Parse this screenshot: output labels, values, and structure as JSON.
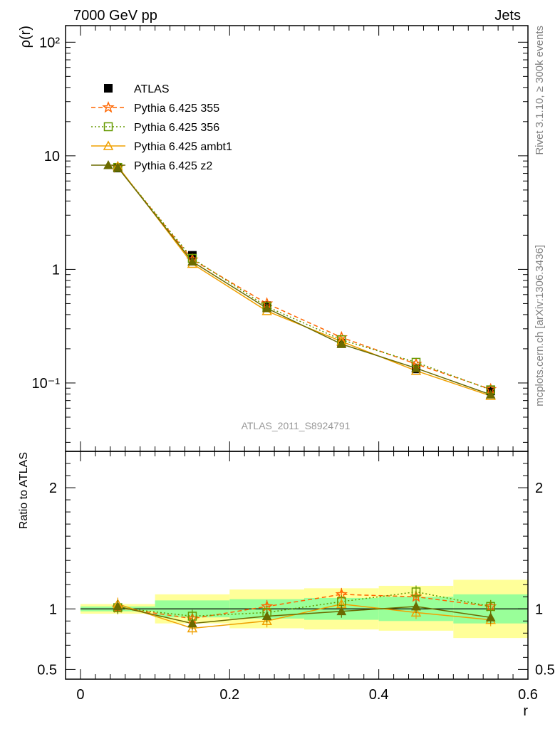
{
  "header": {
    "left": "7000 GeV pp",
    "right": "Jets"
  },
  "side_labels": {
    "rivet": "Rivet 3.1.10, ≥ 300k events",
    "mcplots": "mcplots.cern.ch [arXiv:1306.3436]"
  },
  "watermark": "ATLAS_2011_S8924791",
  "colors": {
    "atlas": "#000000",
    "p355": "#ff6600",
    "p356": "#669900",
    "ambt1": "#f0a000",
    "z2": "#6b6b00",
    "band_inner": "#99ff99",
    "band_outer": "#ffff99"
  },
  "chart_data": [
    {
      "type": "line",
      "panel": "main",
      "ylabel": "ρ(r)",
      "xlabel": "",
      "yscale": "log",
      "ylim": [
        0.025,
        140
      ],
      "xlim": [
        -0.02,
        0.6
      ],
      "y_tick_labels": [
        "10⁻¹",
        "1",
        "10",
        "10²"
      ],
      "legend_position": "top-left",
      "x": [
        0.05,
        0.15,
        0.25,
        0.35,
        0.45,
        0.55
      ],
      "series": [
        {
          "name": "ATLAS",
          "key": "atlas",
          "values": [
            7.8,
            1.33,
            0.48,
            0.225,
            0.133,
            0.085
          ]
        },
        {
          "name": "Pythia 6.425 355",
          "key": "p355",
          "values": [
            7.9,
            1.22,
            0.5,
            0.252,
            0.147,
            0.088
          ]
        },
        {
          "name": "Pythia 6.425 356",
          "key": "p356",
          "values": [
            7.9,
            1.25,
            0.47,
            0.24,
            0.152,
            0.087
          ]
        },
        {
          "name": "Pythia 6.425 ambt1",
          "key": "ambt1",
          "values": [
            8.1,
            1.12,
            0.43,
            0.232,
            0.128,
            0.077
          ]
        },
        {
          "name": "Pythia 6.425 z2",
          "key": "z2",
          "values": [
            7.9,
            1.17,
            0.455,
            0.22,
            0.135,
            0.079
          ]
        }
      ]
    },
    {
      "type": "line",
      "panel": "ratio",
      "ylabel": "Ratio to ATLAS",
      "xlabel": "r",
      "ylim": [
        0.42,
        2.3
      ],
      "xlim": [
        -0.02,
        0.6
      ],
      "y_ticks": [
        0.5,
        1,
        2
      ],
      "y_tick_labels": [
        "0.5",
        "1",
        "2"
      ],
      "x_ticks": [
        0,
        0.2,
        0.4,
        0.6
      ],
      "x_tick_labels": [
        "0",
        "0.2",
        "0.4",
        "0.6"
      ],
      "x": [
        0.05,
        0.15,
        0.25,
        0.35,
        0.45,
        0.55
      ],
      "bins": [
        [
          0,
          0.1
        ],
        [
          0.1,
          0.2
        ],
        [
          0.2,
          0.3
        ],
        [
          0.3,
          0.4
        ],
        [
          0.4,
          0.5
        ],
        [
          0.5,
          0.6
        ]
      ],
      "band_inner": [
        [
          0.98,
          1.02
        ],
        [
          0.93,
          1.07
        ],
        [
          0.92,
          1.08
        ],
        [
          0.91,
          1.09
        ],
        [
          0.9,
          1.1
        ],
        [
          0.88,
          1.12
        ]
      ],
      "band_outer": [
        [
          0.96,
          1.04
        ],
        [
          0.88,
          1.12
        ],
        [
          0.84,
          1.16
        ],
        [
          0.83,
          1.17
        ],
        [
          0.82,
          1.19
        ],
        [
          0.76,
          1.24
        ]
      ],
      "series": [
        {
          "name": "Pythia 6.425 355",
          "key": "p355",
          "values": [
            1.01,
            0.92,
            1.02,
            1.12,
            1.1,
            1.02
          ]
        },
        {
          "name": "Pythia 6.425 356",
          "key": "p356",
          "values": [
            1.01,
            0.94,
            0.97,
            1.06,
            1.14,
            1.02
          ]
        },
        {
          "name": "Pythia 6.425 ambt1",
          "key": "ambt1",
          "values": [
            1.04,
            0.84,
            0.9,
            1.04,
            0.97,
            0.91
          ]
        },
        {
          "name": "Pythia 6.425 z2",
          "key": "z2",
          "values": [
            1.02,
            0.88,
            0.94,
            0.98,
            1.02,
            0.93
          ]
        }
      ]
    }
  ]
}
